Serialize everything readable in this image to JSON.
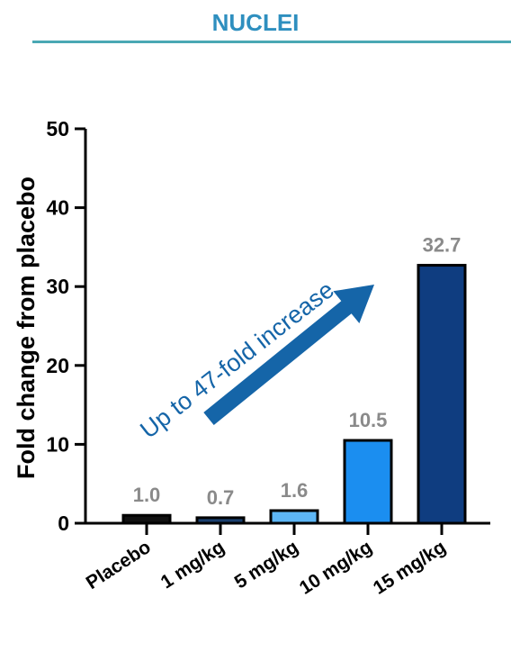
{
  "title": "NUCLEI",
  "colors": {
    "title": "#2e8fbf",
    "rule": "#4aa8b4",
    "arrow": "#1565a8",
    "value_label": "#8a8a8a"
  },
  "chart_data": {
    "type": "bar",
    "categories": [
      "Placebo",
      "1 mg/kg",
      "5 mg/kg",
      "10 mg/kg",
      "15 mg/kg"
    ],
    "values": [
      1.0,
      0.7,
      1.6,
      10.5,
      32.7
    ],
    "value_labels": [
      "1.0",
      "0.7",
      "1.6",
      "10.5",
      "32.7"
    ],
    "bar_colors": [
      "#111111",
      "#1a3f6f",
      "#5db6f5",
      "#1b8ef0",
      "#0f3d80"
    ],
    "ylabel": "Fold change from placebo",
    "xlabel": "",
    "ylim": [
      0,
      50
    ],
    "yticks": [
      0,
      10,
      20,
      30,
      40,
      50
    ],
    "annotation": "Up to 47-fold increase",
    "grid": false
  }
}
